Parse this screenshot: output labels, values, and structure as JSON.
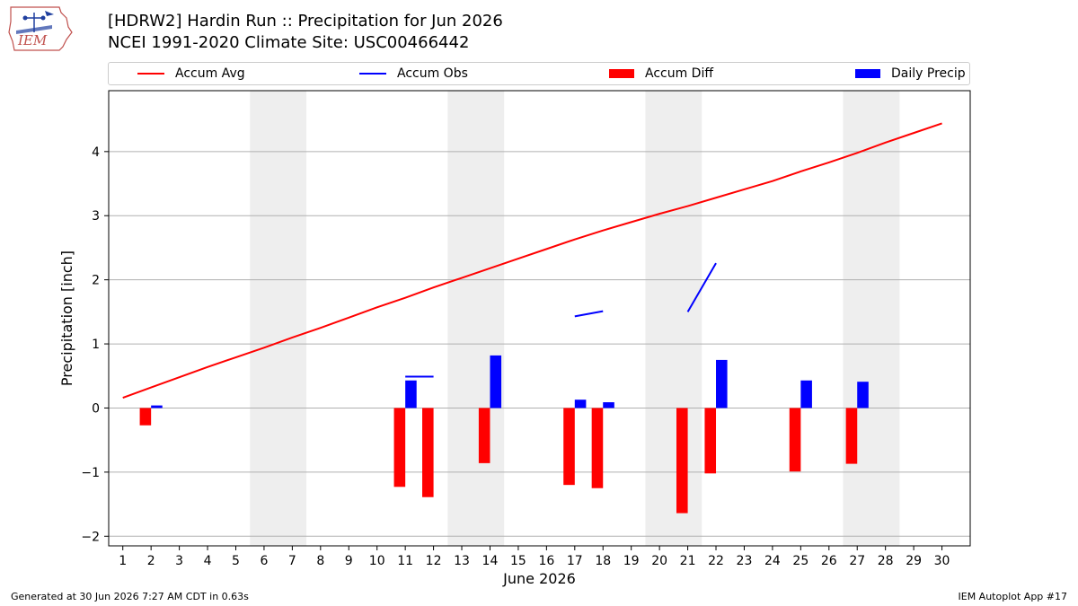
{
  "header": {
    "title": "[HDRW2] Hardin Run :: Precipitation for Jun 2026",
    "subtitle": "NCEI 1991-2020 Climate Site: USC00466442",
    "logo_text": "IEM"
  },
  "legend": {
    "accum_avg": "Accum Avg",
    "accum_obs": "Accum Obs",
    "accum_diff": "Accum Diff",
    "daily_precip": "Daily Precip"
  },
  "footer": {
    "generated": "Generated at 30 Jun 2026 7:27 AM CDT in 0.63s",
    "app": "IEM Autoplot App #17"
  },
  "colors": {
    "accum_avg": "#ff0000",
    "accum_obs": "#0000ff",
    "accum_diff": "#ff0000",
    "daily_precip": "#0000ff",
    "weekend_shade": "#eeeeee",
    "grid": "#b0b0b0"
  },
  "chart_data": {
    "type": "bar",
    "xlabel": "June 2026",
    "ylabel": "Precipitation [inch]",
    "xlim": [
      0.5,
      31
    ],
    "ylim": [
      -2.15,
      4.95
    ],
    "yticks": [
      -2,
      -1,
      0,
      1,
      2,
      3,
      4
    ],
    "xticks": [
      1,
      2,
      3,
      4,
      5,
      6,
      7,
      8,
      9,
      10,
      11,
      12,
      13,
      14,
      15,
      16,
      17,
      18,
      19,
      20,
      21,
      22,
      23,
      24,
      25,
      26,
      27,
      28,
      29,
      30
    ],
    "grid": "horizontal",
    "legend_position": "top",
    "weekend_shading": [
      [
        6,
        7
      ],
      [
        13,
        14
      ],
      [
        20,
        21
      ],
      [
        27,
        28
      ]
    ],
    "series": [
      {
        "name": "Accum Avg",
        "kind": "line",
        "x": [
          1,
          2,
          3,
          4,
          5,
          6,
          7,
          8,
          9,
          10,
          11,
          12,
          13,
          14,
          15,
          16,
          17,
          18,
          19,
          20,
          21,
          22,
          23,
          24,
          25,
          26,
          27,
          28,
          29,
          30
        ],
        "values": [
          0.16,
          0.32,
          0.48,
          0.64,
          0.79,
          0.94,
          1.1,
          1.25,
          1.41,
          1.57,
          1.72,
          1.88,
          2.03,
          2.18,
          2.33,
          2.48,
          2.63,
          2.77,
          2.9,
          3.03,
          3.15,
          3.28,
          3.41,
          3.54,
          3.69,
          3.83,
          3.98,
          4.14,
          4.29,
          4.44
        ]
      },
      {
        "name": "Accum Obs",
        "kind": "line",
        "x": [
          1,
          2,
          3,
          4,
          5,
          6,
          7,
          8,
          9,
          10,
          11,
          12,
          13,
          14,
          15,
          16,
          17,
          18,
          19,
          20,
          21,
          22,
          23,
          24,
          25,
          26,
          27,
          28,
          29,
          30
        ],
        "values": [
          null,
          null,
          null,
          null,
          null,
          null,
          null,
          null,
          null,
          null,
          0.49,
          0.49,
          null,
          null,
          null,
          null,
          1.43,
          1.51,
          null,
          null,
          1.5,
          2.26,
          null,
          null,
          null,
          null,
          null,
          null,
          null,
          null
        ]
      },
      {
        "name": "Accum Diff",
        "kind": "bar",
        "x": [
          2,
          11,
          12,
          14,
          17,
          18,
          21,
          22,
          25,
          27
        ],
        "values": [
          -0.27,
          -1.23,
          -1.39,
          -0.86,
          -1.2,
          -1.25,
          -1.64,
          -1.02,
          -0.99,
          -0.87
        ]
      },
      {
        "name": "Daily Precip",
        "kind": "bar",
        "x": [
          2,
          11,
          14,
          17,
          18,
          22,
          25,
          27
        ],
        "values": [
          0.04,
          0.43,
          0.82,
          0.13,
          0.09,
          0.75,
          0.43,
          0.41
        ]
      }
    ]
  }
}
